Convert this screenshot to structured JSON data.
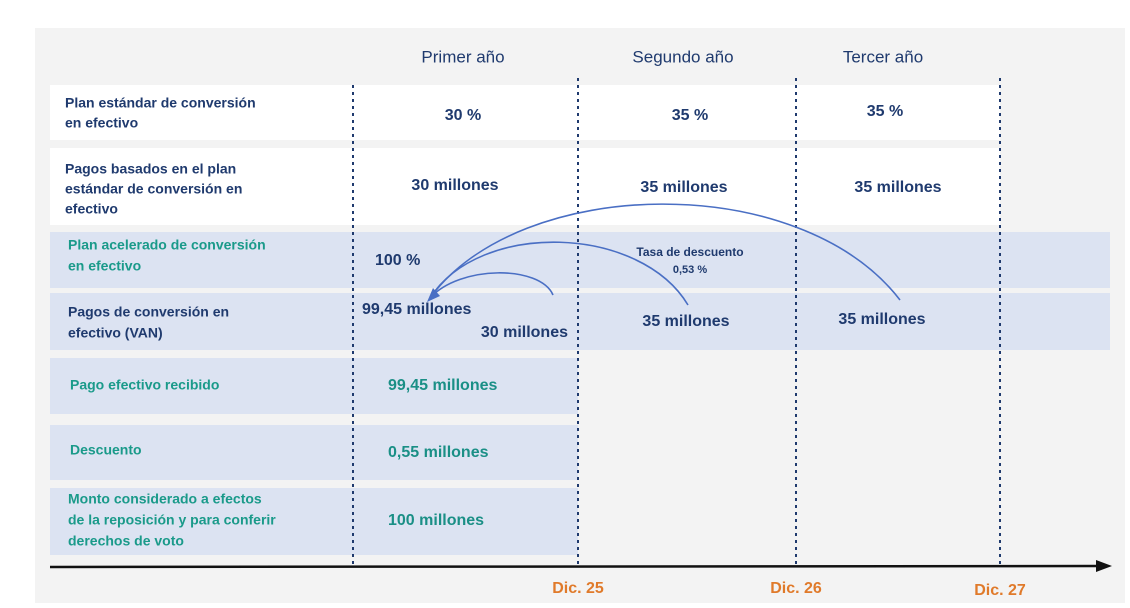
{
  "header": {
    "columns": [
      "Primer año",
      "Segundo año",
      "Tercer año"
    ]
  },
  "rows": [
    {
      "label": [
        "Plan estándar de conversión",
        "en efectivo"
      ],
      "values": [
        "30 %",
        "35 %",
        "35 %"
      ]
    },
    {
      "label": [
        "Pagos basados en el plan",
        "estándar de conversión en",
        "efectivo"
      ],
      "values": [
        "30 millones",
        "35 millones",
        "35 millones"
      ]
    },
    {
      "label": [
        "Plan acelerado de conversión",
        "en efectivo"
      ],
      "values": [
        "100 %"
      ]
    },
    {
      "label": [
        "Pagos de conversión en",
        "efectivo (VAN)"
      ],
      "values": [
        "99,45 millones",
        "30 millones",
        "35 millones",
        "35 millones"
      ]
    },
    {
      "label": [
        "Pago efectivo recibido"
      ],
      "values": [
        "99,45 millones"
      ]
    },
    {
      "label": [
        "Descuento"
      ],
      "values": [
        "0,55 millones"
      ]
    },
    {
      "label": [
        "Monto considerado a efectos",
        "de la reposición y para conferir",
        "derechos de voto"
      ],
      "values": [
        "100 millones"
      ]
    }
  ],
  "annotation": [
    "Tasa de descuento",
    "0,53 %"
  ],
  "dates": [
    "Dic. 25",
    "Dic. 26",
    "Dic. 27"
  ]
}
